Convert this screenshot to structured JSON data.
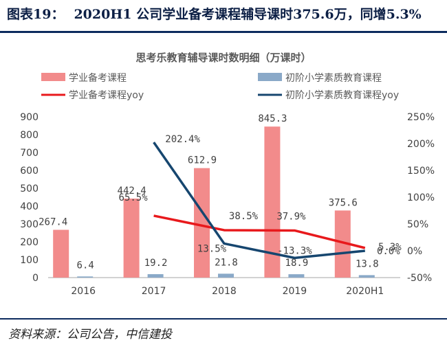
{
  "figure": {
    "number": "图表19：",
    "caption": "2020H1 公司学业备考课程辅导课时375.6万，同增5.3%",
    "source": "资料来源：公司公告，中信建投"
  },
  "chart_data": {
    "type": "bar",
    "title": "思考乐教育辅导课时数明细（万课时）",
    "categories": [
      "2016",
      "2017",
      "2018",
      "2019",
      "2020H1"
    ],
    "series": [
      {
        "name": "学业备考课程",
        "type": "bar",
        "axis": "left",
        "color": "#f28b8b",
        "values": [
          267.4,
          442.4,
          612.9,
          845.3,
          375.6
        ],
        "labels": [
          "267.4",
          "442.4",
          "612.9",
          "845.3",
          "375.6"
        ]
      },
      {
        "name": "初阶小学素质教育课程",
        "type": "bar",
        "axis": "left",
        "color": "#8aa9c8",
        "values": [
          6.4,
          19.2,
          21.8,
          18.9,
          13.8
        ],
        "labels": [
          "6.4",
          "19.2",
          "21.8",
          "18.9",
          "13.8"
        ]
      },
      {
        "name": "学业备考课程yoy",
        "type": "line",
        "axis": "right",
        "color": "#e8191c",
        "values": [
          null,
          65.5,
          38.5,
          37.9,
          5.3
        ],
        "labels": [
          null,
          "65.5%",
          "38.5%",
          "37.9%",
          "5.3%"
        ]
      },
      {
        "name": "初阶小学素质教育课程yoy",
        "type": "line",
        "axis": "right",
        "color": "#16466f",
        "values": [
          null,
          202.4,
          13.5,
          -13.3,
          0.0
        ],
        "labels": [
          null,
          "202.4%",
          "13.5%",
          "-13.3%",
          "0.0%"
        ]
      }
    ],
    "y_left": {
      "range": [
        0,
        900
      ],
      "ticks": [
        0,
        100,
        200,
        300,
        400,
        500,
        600,
        700,
        800,
        900
      ]
    },
    "y_right": {
      "range": [
        -50,
        250
      ],
      "ticks": [
        "-50%",
        "0%",
        "50%",
        "100%",
        "150%",
        "200%",
        "250%"
      ],
      "tick_values": [
        -50,
        0,
        50,
        100,
        150,
        200,
        250
      ]
    },
    "grid": false,
    "legend_position": "top"
  }
}
